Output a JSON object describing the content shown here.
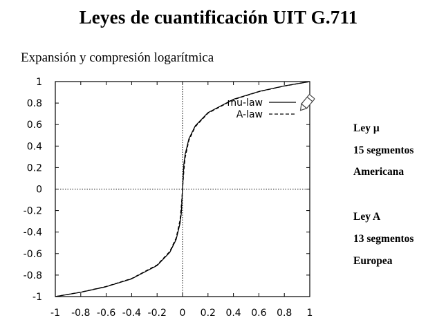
{
  "slide": {
    "title": "Leyes de cuantificación UIT G.711",
    "subtitle": "Expansión y compresión logarítmica",
    "notes": [
      {
        "text": "Ley μ"
      },
      {
        "text": "15 segmentos"
      },
      {
        "text": "Americana"
      },
      {
        "text": "Ley A"
      },
      {
        "text": "13 segmentos"
      },
      {
        "text": "Europea"
      }
    ]
  },
  "chart_data": {
    "type": "line",
    "title": "",
    "xlabel": "",
    "ylabel": "",
    "xlim": [
      -1,
      1
    ],
    "ylim": [
      -1,
      1
    ],
    "xticks": [
      -1,
      -0.8,
      -0.6,
      -0.4,
      -0.2,
      0,
      0.2,
      0.4,
      0.6,
      0.8,
      1
    ],
    "yticks": [
      -1,
      -0.8,
      -0.6,
      -0.4,
      -0.2,
      0,
      0.2,
      0.4,
      0.6,
      0.8,
      1
    ],
    "xtick_labels": [
      "-1",
      "-0.8",
      "-0.6",
      "-0.4",
      "-0.2",
      "0",
      "0.2",
      "0.4",
      "0.6",
      "0.8",
      "1"
    ],
    "ytick_labels": [
      "-1",
      "-0.8",
      "-0.6",
      "-0.4",
      "-0.2",
      "0",
      "0.2",
      "0.4",
      "0.6",
      "0.8",
      "1"
    ],
    "grid": false,
    "zero_axes": "dotted",
    "legend_position": "top-right",
    "series": [
      {
        "name": "mu-law",
        "style": "solid",
        "color": "#000000",
        "x": [
          -1,
          -0.8,
          -0.6,
          -0.4,
          -0.2,
          -0.1,
          -0.05,
          -0.02,
          -0.01,
          0,
          0.01,
          0.02,
          0.05,
          0.1,
          0.2,
          0.4,
          0.6,
          0.8,
          1
        ],
        "y": [
          -1,
          -0.96,
          -0.908,
          -0.835,
          -0.711,
          -0.588,
          -0.468,
          -0.32,
          -0.228,
          0,
          0.228,
          0.32,
          0.468,
          0.588,
          0.711,
          0.835,
          0.908,
          0.96,
          1
        ]
      },
      {
        "name": "A-law",
        "style": "dashed",
        "color": "#000000",
        "x": [
          -1,
          -0.8,
          -0.6,
          -0.4,
          -0.2,
          -0.1,
          -0.05,
          -0.02,
          -0.01,
          0,
          0.01,
          0.02,
          0.05,
          0.1,
          0.2,
          0.4,
          0.6,
          0.8,
          1
        ],
        "y": [
          -1,
          -0.959,
          -0.906,
          -0.832,
          -0.706,
          -0.58,
          -0.454,
          -0.29,
          -0.165,
          0,
          0.165,
          0.29,
          0.454,
          0.58,
          0.706,
          0.832,
          0.906,
          0.959,
          1
        ]
      }
    ]
  }
}
